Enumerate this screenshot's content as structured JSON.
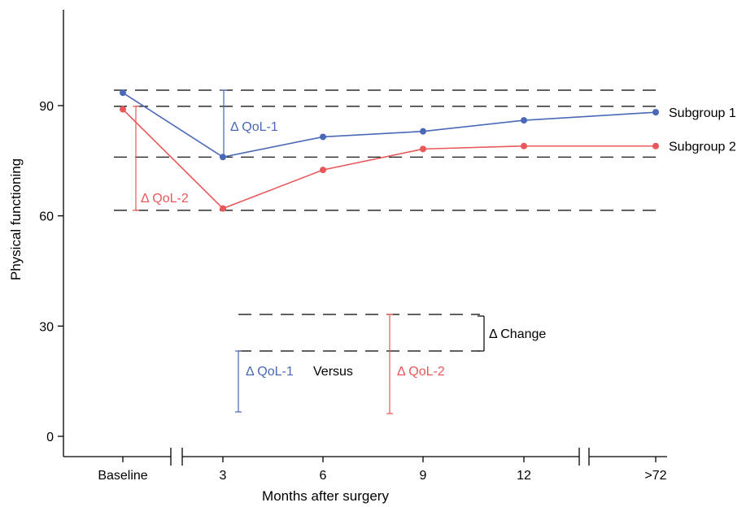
{
  "chart_data": {
    "type": "line",
    "categories": [
      "Baseline",
      "3",
      "6",
      "9",
      "12",
      ">72"
    ],
    "xlabel": "Months after surgery",
    "ylabel": "Physical functioning",
    "yticks": [
      0,
      30,
      60,
      90
    ],
    "ylim": [
      -5,
      118
    ],
    "axis_break_after": [
      "Baseline",
      "12"
    ],
    "series": [
      {
        "name": "Subgroup 1",
        "color": "#4a68b8",
        "values": [
          93.5,
          76,
          81.5,
          83,
          86,
          88.2
        ]
      },
      {
        "name": "Subgroup 2",
        "color": "#e8585a",
        "values": [
          89,
          62,
          72.5,
          78.2,
          79,
          79
        ]
      }
    ],
    "reference_lines": [
      94.2,
      89.8,
      76,
      61.5
    ],
    "annotations": {
      "qol1_label": "Δ QoL-1",
      "qol2_label": "Δ QoL-2",
      "versus": "Versus",
      "change": "Δ Change"
    }
  }
}
